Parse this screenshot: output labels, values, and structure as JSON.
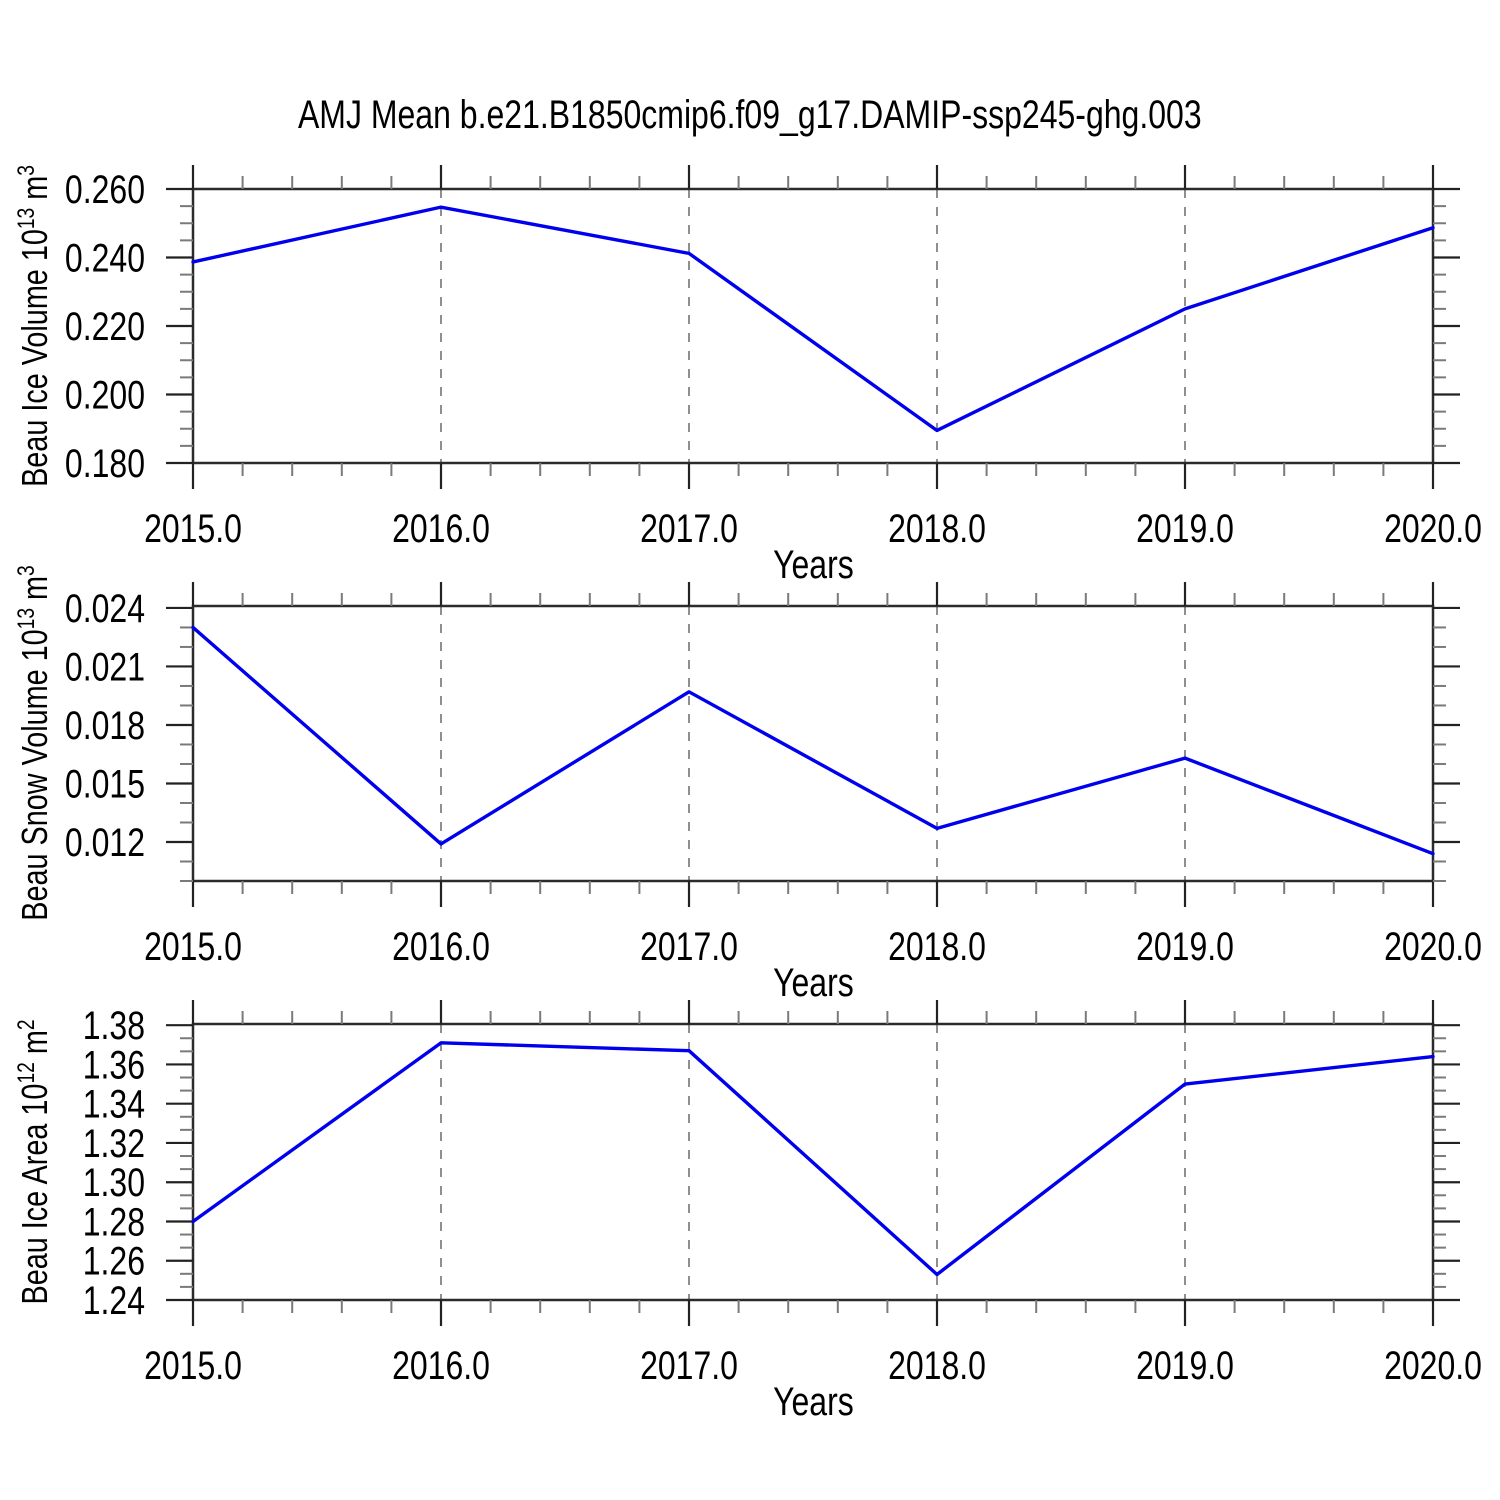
{
  "title": "AMJ Mean b.e21.B1850cmip6.f09_g17.DAMIP-ssp245-ghg.003",
  "chart_data": [
    {
      "type": "line",
      "title": "Beau Ice Volume",
      "xlabel": "Years",
      "ylabel": "Beau Ice Volume 10^13 m^3",
      "ylabel_parts": {
        "prefix": "Beau Ice Volume 10",
        "exponent": "13",
        "unit": " m",
        "unit_exponent": "3"
      },
      "x": [
        2015,
        2016,
        2017,
        2018,
        2019,
        2020
      ],
      "x_tick_labels": [
        "2015.0",
        "2016.0",
        "2017.0",
        "2018.0",
        "2019.0",
        "2020.0"
      ],
      "values": [
        0.2387,
        0.2547,
        0.2412,
        0.1895,
        0.225,
        0.2487
      ],
      "y_ticks": [
        0.18,
        0.2,
        0.22,
        0.24,
        0.26
      ],
      "y_tick_labels": [
        "0.180",
        "0.200",
        "0.220",
        "0.240",
        "0.260"
      ],
      "ylim": [
        0.18,
        0.26
      ],
      "xlim": [
        2015,
        2020
      ],
      "y_minor_step": 0.005,
      "x_minor_step": 0.2,
      "grid_x": [
        2016,
        2017,
        2018,
        2019
      ],
      "line_color": "#0000ee",
      "grid_on": true,
      "legend": "none"
    },
    {
      "type": "line",
      "title": "Beau Snow Volume",
      "xlabel": "Years",
      "ylabel": "Beau Snow Volume 10^13 m^3",
      "ylabel_parts": {
        "prefix": "Beau Snow Volume 10",
        "exponent": "13",
        "unit": " m",
        "unit_exponent": "3"
      },
      "x": [
        2015,
        2016,
        2017,
        2018,
        2019,
        2020
      ],
      "x_tick_labels": [
        "2015.0",
        "2016.0",
        "2017.0",
        "2018.0",
        "2019.0",
        "2020.0"
      ],
      "values": [
        0.023,
        0.0119,
        0.0197,
        0.0127,
        0.0163,
        0.0114
      ],
      "y_ticks": [
        0.012,
        0.015,
        0.018,
        0.021,
        0.024
      ],
      "y_tick_labels": [
        "0.012",
        "0.015",
        "0.018",
        "0.021",
        "0.024"
      ],
      "ylim": [
        0.01,
        0.0241
      ],
      "xlim": [
        2015,
        2020
      ],
      "y_minor_step": 0.001,
      "x_minor_step": 0.2,
      "grid_x": [
        2016,
        2017,
        2018,
        2019
      ],
      "line_color": "#0000ee",
      "grid_on": true,
      "legend": "none"
    },
    {
      "type": "line",
      "title": "Beau Ice Area",
      "xlabel": "Years",
      "ylabel": "Beau Ice Area 10^12 m^2",
      "ylabel_parts": {
        "prefix": "Beau Ice Area 10",
        "exponent": "12",
        "unit": " m",
        "unit_exponent": "2"
      },
      "x": [
        2015,
        2016,
        2017,
        2018,
        2019,
        2020
      ],
      "x_tick_labels": [
        "2015.0",
        "2016.0",
        "2017.0",
        "2018.0",
        "2019.0",
        "2020.0"
      ],
      "values": [
        1.28,
        1.371,
        1.367,
        1.253,
        1.35,
        1.364
      ],
      "y_ticks": [
        1.24,
        1.26,
        1.28,
        1.3,
        1.32,
        1.34,
        1.36,
        1.38
      ],
      "y_tick_labels": [
        "1.24",
        "1.26",
        "1.28",
        "1.30",
        "1.32",
        "1.34",
        "1.36",
        "1.38"
      ],
      "ylim": [
        1.24,
        1.3806
      ],
      "xlim": [
        2015,
        2020
      ],
      "y_minor_step": 0.0066667,
      "x_minor_step": 0.2,
      "grid_x": [
        2016,
        2017,
        2018,
        2019
      ],
      "line_color": "#0000ee",
      "grid_on": true,
      "legend": "none"
    }
  ]
}
